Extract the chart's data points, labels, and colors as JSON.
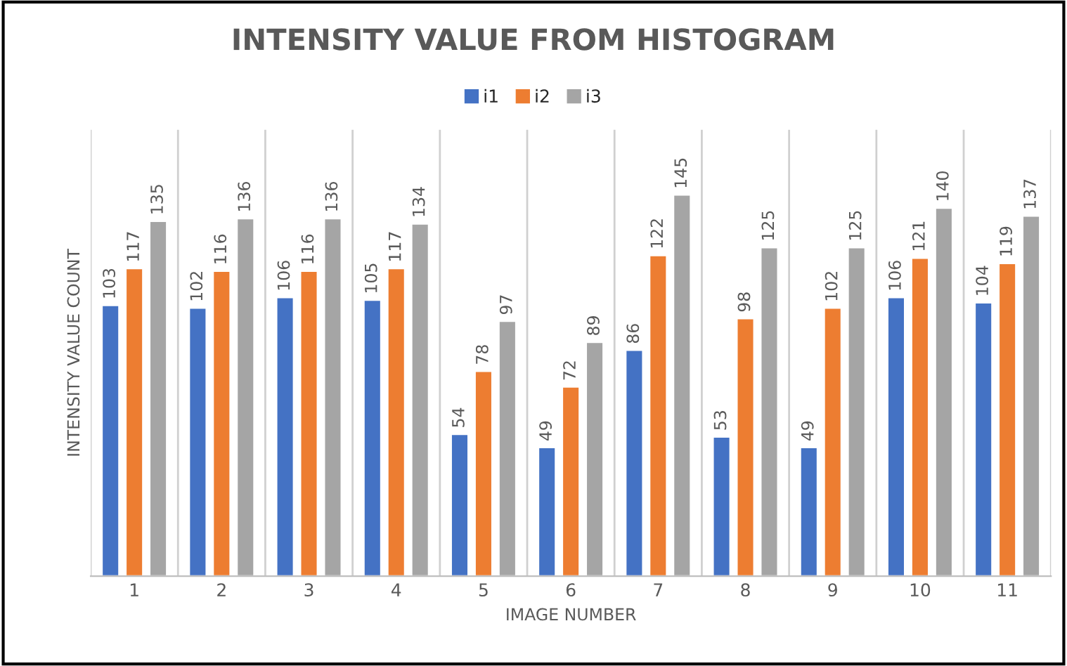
{
  "chart_data": {
    "type": "bar",
    "title": "INTENSITY VALUE FROM HISTOGRAM",
    "xlabel": "IMAGE NUMBER",
    "ylabel": "INTENSITY VALUE COUNT",
    "categories": [
      "1",
      "2",
      "3",
      "4",
      "5",
      "6",
      "7",
      "8",
      "9",
      "10",
      "11"
    ],
    "series": [
      {
        "name": "i1",
        "color": "#4472c4",
        "values": [
          103,
          102,
          106,
          105,
          54,
          49,
          86,
          53,
          49,
          106,
          104
        ]
      },
      {
        "name": "i2",
        "color": "#ed7d31",
        "values": [
          117,
          116,
          116,
          117,
          78,
          72,
          122,
          98,
          102,
          121,
          119
        ]
      },
      {
        "name": "i3",
        "color": "#a5a5a5",
        "values": [
          135,
          136,
          136,
          134,
          97,
          89,
          145,
          125,
          125,
          140,
          137
        ]
      }
    ],
    "data_labels": true,
    "grid": "x",
    "legend": "top",
    "tick_labels": "x"
  }
}
